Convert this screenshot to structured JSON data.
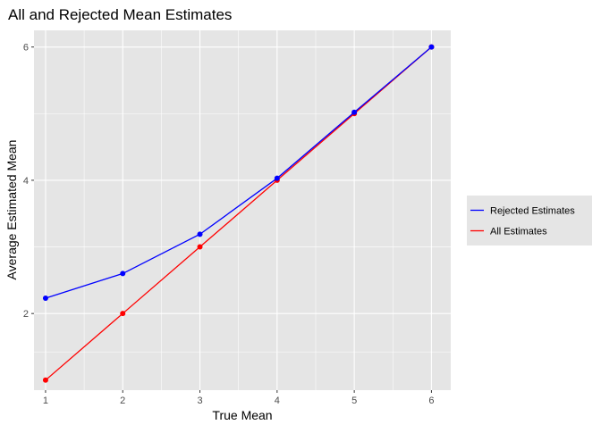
{
  "chart_data": {
    "type": "line",
    "title": "All and Rejected Mean Estimates",
    "xlabel": "True Mean",
    "ylabel": "Average Estimated Mean",
    "x": [
      1,
      2,
      3,
      4,
      5,
      6
    ],
    "xlim": [
      0.85,
      6.25
    ],
    "ylim": [
      0.85,
      6.25
    ],
    "x_ticks": [
      1,
      2,
      3,
      4,
      5,
      6
    ],
    "y_ticks": [
      2,
      4,
      6
    ],
    "grid": true,
    "legend_position": "right",
    "series": [
      {
        "name": "Rejected Estimates",
        "color": "#0000ff",
        "values": [
          2.23,
          2.6,
          3.19,
          4.03,
          5.02,
          6.0
        ]
      },
      {
        "name": "All Estimates",
        "color": "#ff0000",
        "values": [
          1.0,
          2.0,
          3.0,
          4.0,
          5.0,
          6.0
        ]
      }
    ]
  },
  "colors": {
    "panel_background": "#e5e5e5",
    "legend_background": "#e5e5e5",
    "gridline": "#ffffff"
  }
}
